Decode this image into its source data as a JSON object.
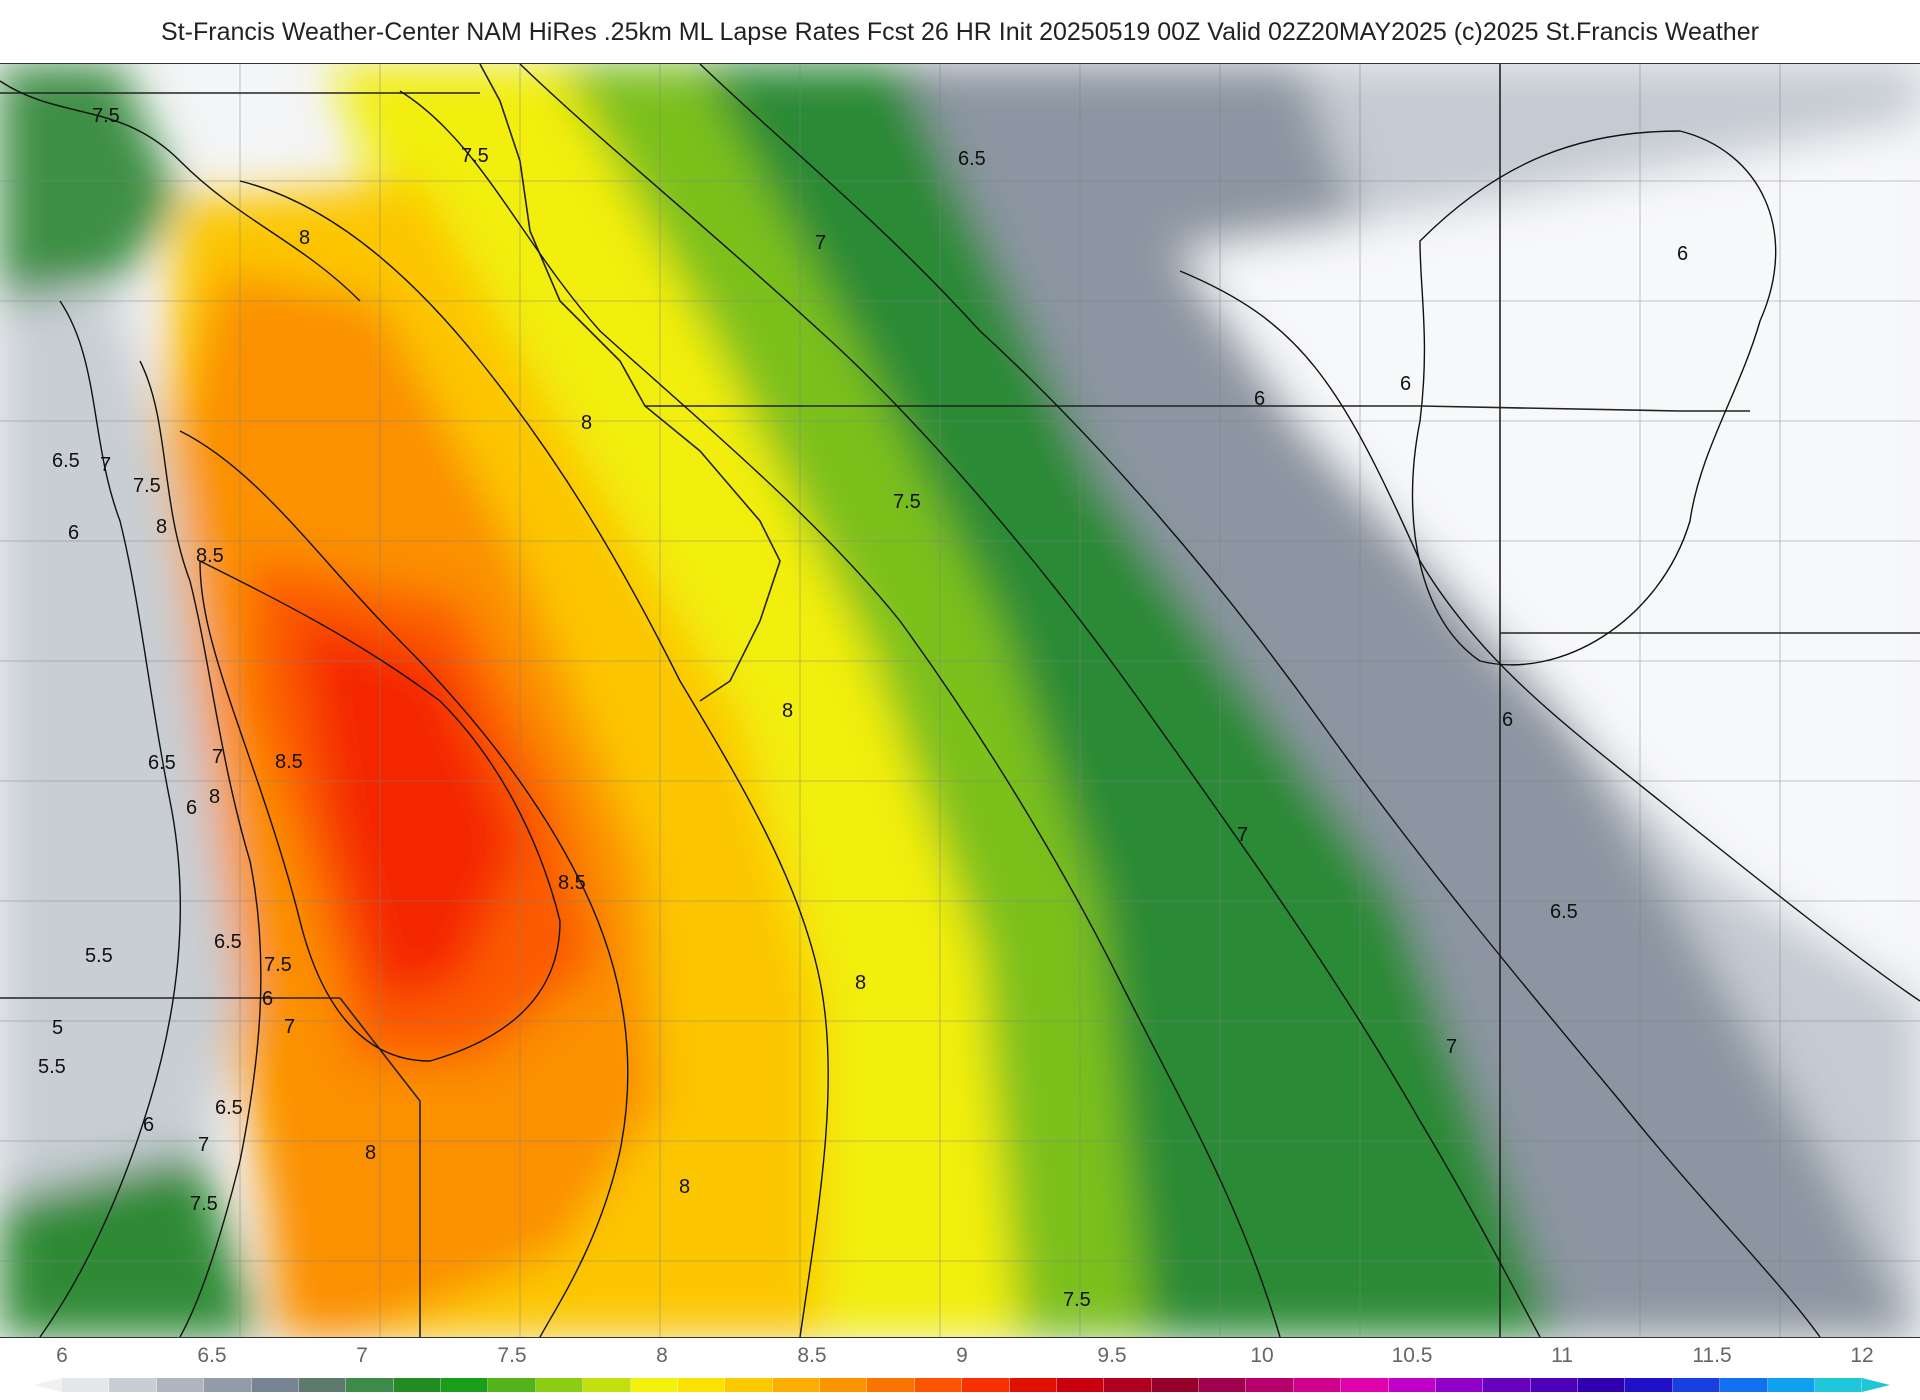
{
  "title": "St-Francis Weather-Center NAM HiRes .25km ML Lapse Rates  Fcst 26 HR Init 20250519 00Z  Valid 02Z20MAY2025    (c)2025 St.Francis Weather",
  "colorbar": {
    "ticks": [
      "6",
      "6.5",
      "7",
      "7.5",
      "8",
      "8.5",
      "9",
      "9.5",
      "10",
      "10.5",
      "11",
      "11.5",
      "12"
    ],
    "colors": [
      "#e4e7ea",
      "#c9ced5",
      "#aeb5bf",
      "#929ba8",
      "#778393",
      "#5e7a6c",
      "#3d8a4a",
      "#228b22",
      "#1a9e1a",
      "#52b31a",
      "#8ccc14",
      "#c2e00e",
      "#f2f20a",
      "#fbe200",
      "#fcc800",
      "#fcaf00",
      "#fc9400",
      "#fb7400",
      "#fb5300",
      "#f83000",
      "#e01000",
      "#c80010",
      "#b00020",
      "#98002c",
      "#a0004c",
      "#b8006c",
      "#d0008c",
      "#e000ac",
      "#c000c8",
      "#9000c8",
      "#6800c0",
      "#4c00b8",
      "#3000b0",
      "#2010c8",
      "#1840e0",
      "#1070f0",
      "#10a0f0",
      "#1ec6d8"
    ]
  },
  "contour_labels": [
    {
      "text": "7.5"
    },
    {
      "text": "7.5"
    },
    {
      "text": "6.5"
    },
    {
      "text": "7"
    },
    {
      "text": "6"
    },
    {
      "text": "6"
    },
    {
      "text": "6"
    },
    {
      "text": "8"
    },
    {
      "text": "8"
    },
    {
      "text": "6.5"
    },
    {
      "text": "7"
    },
    {
      "text": "7.5"
    },
    {
      "text": "7.5"
    },
    {
      "text": "8"
    },
    {
      "text": "6"
    },
    {
      "text": "8.5"
    },
    {
      "text": "8"
    },
    {
      "text": "6.5"
    },
    {
      "text": "7"
    },
    {
      "text": "8.5"
    },
    {
      "text": "6"
    },
    {
      "text": "8"
    },
    {
      "text": "6"
    },
    {
      "text": "7"
    },
    {
      "text": "8.5"
    },
    {
      "text": "6.5"
    },
    {
      "text": "5.5"
    },
    {
      "text": "7.5"
    },
    {
      "text": "6.5"
    },
    {
      "text": "8"
    },
    {
      "text": "5"
    },
    {
      "text": "6"
    },
    {
      "text": "7"
    },
    {
      "text": "7"
    },
    {
      "text": "5.5"
    },
    {
      "text": "6.5"
    },
    {
      "text": "6"
    },
    {
      "text": "8"
    },
    {
      "text": "7"
    },
    {
      "text": "8"
    },
    {
      "text": "7.5"
    },
    {
      "text": "7.5"
    }
  ],
  "legend": {
    "fields": [
      "ML Lapse Rates"
    ]
  }
}
